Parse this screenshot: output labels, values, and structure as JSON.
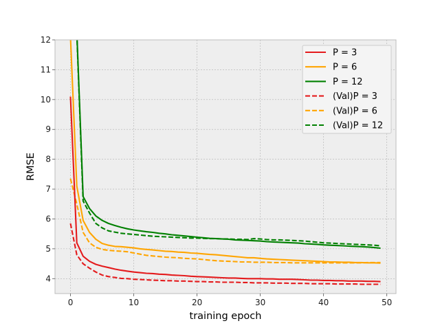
{
  "chart_data": {
    "type": "line",
    "title": "",
    "xlabel": "training epoch",
    "ylabel": "RMSE",
    "xlim": [
      -2.45,
      51.45
    ],
    "ylim": [
      3.5,
      12
    ],
    "xticks": [
      0,
      10,
      20,
      30,
      40,
      50
    ],
    "yticks": [
      4,
      5,
      6,
      7,
      8,
      9,
      10,
      11,
      12
    ],
    "grid": true,
    "legend_position": "top-right",
    "x": [
      0,
      1,
      2,
      3,
      4,
      5,
      6,
      7,
      8,
      9,
      10,
      11,
      12,
      13,
      14,
      15,
      16,
      17,
      18,
      19,
      20,
      21,
      22,
      23,
      24,
      25,
      26,
      27,
      28,
      29,
      30,
      31,
      32,
      33,
      34,
      35,
      36,
      37,
      38,
      39,
      40,
      41,
      42,
      43,
      44,
      45,
      46,
      47,
      48,
      49
    ],
    "series": [
      {
        "name": "P = 3",
        "color": "#e41a1c",
        "dash": "solid",
        "values": [
          10.1,
          5.2,
          4.75,
          4.58,
          4.48,
          4.42,
          4.37,
          4.32,
          4.28,
          4.25,
          4.22,
          4.2,
          4.18,
          4.17,
          4.15,
          4.14,
          4.12,
          4.11,
          4.1,
          4.08,
          4.07,
          4.06,
          4.05,
          4.04,
          4.03,
          4.02,
          4.02,
          4.01,
          4.0,
          4.0,
          4.0,
          3.99,
          3.99,
          3.98,
          3.98,
          3.98,
          3.97,
          3.96,
          3.95,
          3.95,
          3.94,
          3.94,
          3.93,
          3.93,
          3.92,
          3.92,
          3.92,
          3.91,
          3.91,
          3.9
        ]
      },
      {
        "name": "P = 6",
        "color": "#ffa500",
        "dash": "solid",
        "values": [
          12.1,
          7.1,
          5.95,
          5.55,
          5.32,
          5.18,
          5.12,
          5.08,
          5.07,
          5.05,
          5.03,
          5.0,
          4.98,
          4.96,
          4.94,
          4.92,
          4.91,
          4.89,
          4.88,
          4.86,
          4.85,
          4.83,
          4.81,
          4.8,
          4.78,
          4.76,
          4.74,
          4.72,
          4.7,
          4.7,
          4.68,
          4.66,
          4.65,
          4.64,
          4.63,
          4.62,
          4.61,
          4.6,
          4.59,
          4.58,
          4.57,
          4.56,
          4.56,
          4.55,
          4.55,
          4.54,
          4.54,
          4.53,
          4.53,
          4.52
        ]
      },
      {
        "name": "P = 12",
        "color": "#008000",
        "dash": "solid",
        "values": [
          12.3,
          12.3,
          6.75,
          6.35,
          6.1,
          5.95,
          5.85,
          5.78,
          5.72,
          5.67,
          5.63,
          5.6,
          5.57,
          5.55,
          5.52,
          5.5,
          5.47,
          5.45,
          5.43,
          5.41,
          5.39,
          5.37,
          5.35,
          5.34,
          5.33,
          5.32,
          5.3,
          5.29,
          5.28,
          5.27,
          5.26,
          5.24,
          5.23,
          5.22,
          5.21,
          5.2,
          5.19,
          5.17,
          5.16,
          5.15,
          5.13,
          5.12,
          5.11,
          5.1,
          5.09,
          5.08,
          5.07,
          5.06,
          5.04,
          5.02
        ]
      },
      {
        "name": "(Val)P = 3",
        "color": "#e41a1c",
        "dash": "dashed",
        "values": [
          5.85,
          4.8,
          4.5,
          4.35,
          4.22,
          4.12,
          4.07,
          4.04,
          4.01,
          4.0,
          3.98,
          3.97,
          3.96,
          3.95,
          3.94,
          3.93,
          3.93,
          3.92,
          3.92,
          3.91,
          3.9,
          3.9,
          3.89,
          3.89,
          3.88,
          3.88,
          3.88,
          3.87,
          3.87,
          3.86,
          3.86,
          3.86,
          3.85,
          3.85,
          3.85,
          3.84,
          3.84,
          3.84,
          3.83,
          3.83,
          3.83,
          3.83,
          3.82,
          3.82,
          3.82,
          3.82,
          3.81,
          3.81,
          3.81,
          3.81
        ]
      },
      {
        "name": "(Val)P = 6",
        "color": "#ffa500",
        "dash": "dashed",
        "values": [
          7.35,
          6.5,
          5.55,
          5.2,
          5.05,
          4.98,
          4.95,
          4.93,
          4.92,
          4.9,
          4.86,
          4.82,
          4.78,
          4.76,
          4.74,
          4.72,
          4.71,
          4.7,
          4.68,
          4.67,
          4.66,
          4.64,
          4.62,
          4.6,
          4.59,
          4.58,
          4.57,
          4.56,
          4.56,
          4.55,
          4.55,
          4.55,
          4.54,
          4.54,
          4.54,
          4.53,
          4.53,
          4.53,
          4.53,
          4.53,
          4.53,
          4.53,
          4.53,
          4.53,
          4.53,
          4.53,
          4.53,
          4.54,
          4.54,
          4.54
        ]
      },
      {
        "name": "(Val)P = 12",
        "color": "#008000",
        "dash": "dashed",
        "values": [
          12.3,
          12.2,
          6.6,
          6.2,
          5.85,
          5.7,
          5.6,
          5.56,
          5.52,
          5.5,
          5.48,
          5.46,
          5.44,
          5.42,
          5.41,
          5.4,
          5.39,
          5.38,
          5.37,
          5.36,
          5.36,
          5.35,
          5.34,
          5.34,
          5.33,
          5.33,
          5.32,
          5.32,
          5.31,
          5.34,
          5.33,
          5.31,
          5.3,
          5.3,
          5.29,
          5.28,
          5.27,
          5.26,
          5.24,
          5.22,
          5.2,
          5.19,
          5.18,
          5.17,
          5.16,
          5.15,
          5.14,
          5.13,
          5.12,
          5.1
        ]
      }
    ]
  }
}
